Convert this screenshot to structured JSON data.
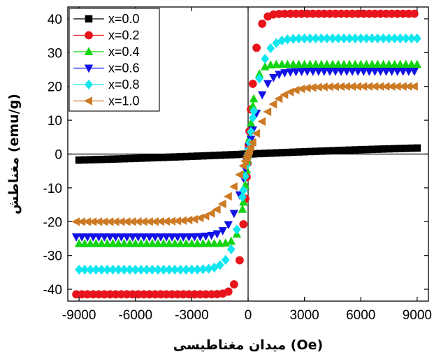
{
  "chart_data": {
    "type": "scatter",
    "xlabel": "(Oe) میدان مغناطیسی",
    "ylabel": "مغناطش (emu/g)",
    "xlim": [
      -9600,
      9600
    ],
    "ylim": [
      -43.5,
      43.5
    ],
    "xticks": [
      "-9000",
      "-6000",
      "-3000",
      "0",
      "3000",
      "6000",
      "9000"
    ],
    "xtick_values": [
      -9000,
      -6000,
      -3000,
      0,
      3000,
      6000,
      9000
    ],
    "yticks": [
      "-40",
      "-30",
      "-20",
      "-10",
      "0",
      "10",
      "20",
      "30",
      "40"
    ],
    "ytick_values": [
      -40,
      -30,
      -20,
      -10,
      0,
      10,
      20,
      30,
      40
    ],
    "grid": false,
    "zero_lines": true,
    "legend_position": "top-left",
    "series": [
      {
        "name": "x=0.0",
        "color": "#000000",
        "marker": "square",
        "ms": 1.0,
        "k": 0.00012,
        "lin": 0.00011,
        "odd": 0
      },
      {
        "name": "x=0.2",
        "color": "#e8141b",
        "marker": "circle",
        "ms": 41.5,
        "k": 0.0022,
        "lin": 0,
        "odd": 1
      },
      {
        "name": "x=0.4",
        "color": "#12d412",
        "marker": "triangle-up",
        "ms": 26.5,
        "k": 0.0024,
        "lin": 0,
        "odd": 0
      },
      {
        "name": "x=0.6",
        "color": "#1212e6",
        "marker": "triangle-down",
        "ms": 24.5,
        "k": 0.0012,
        "lin": 0,
        "odd": 1
      },
      {
        "name": "x=0.8",
        "color": "#10e6f0",
        "marker": "diamond",
        "ms": 34.2,
        "k": 0.0013,
        "lin": 0,
        "odd": 0
      },
      {
        "name": "x=1.0",
        "color": "#cc7a24",
        "marker": "triangle-left",
        "ms": 20.0,
        "k": 0.0007,
        "lin": 0,
        "odd": 1
      }
    ]
  }
}
